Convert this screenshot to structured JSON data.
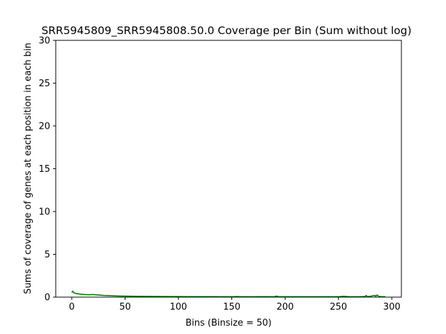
{
  "chart_data": {
    "type": "line",
    "title": "SRR5945809_SRR5945808.50.0 Coverage per Bin (Sum without log)",
    "xlabel": "Bins (Binsize = 50)",
    "ylabel": "Sums of coverage of genes at each position in each bin",
    "xlim": [
      -15,
      309
    ],
    "ylim": [
      0,
      30
    ],
    "xticks": [
      0,
      50,
      100,
      150,
      200,
      250,
      300
    ],
    "yticks": [
      0,
      5,
      10,
      15,
      20,
      25,
      30
    ],
    "grid": false,
    "series": [
      {
        "color": "#008000",
        "x": [
          0,
          1,
          2,
          3,
          5,
          8,
          12,
          16,
          20,
          25,
          30,
          35,
          40,
          45,
          50,
          60,
          70,
          80,
          90,
          100,
          110,
          120,
          130,
          140,
          150,
          155,
          160,
          170,
          180,
          190,
          192,
          194,
          200,
          210,
          220,
          230,
          240,
          250,
          255,
          260,
          270,
          275,
          276,
          277,
          280,
          282,
          284,
          285,
          286,
          288,
          290,
          294
        ],
        "y": [
          0.55,
          0.7,
          0.5,
          0.45,
          0.4,
          0.35,
          0.3,
          0.28,
          0.3,
          0.25,
          0.2,
          0.18,
          0.15,
          0.13,
          0.12,
          0.1,
          0.09,
          0.08,
          0.07,
          0.07,
          0.06,
          0.06,
          0.06,
          0.05,
          0.05,
          0.07,
          0.05,
          0.05,
          0.06,
          0.05,
          0.12,
          0.05,
          0.05,
          0.05,
          0.05,
          0.05,
          0.05,
          0.05,
          0.1,
          0.05,
          0.05,
          0.08,
          0.2,
          0.06,
          0.1,
          0.15,
          0.2,
          0.1,
          0.25,
          0.08,
          0.06,
          0.05
        ]
      }
    ]
  }
}
